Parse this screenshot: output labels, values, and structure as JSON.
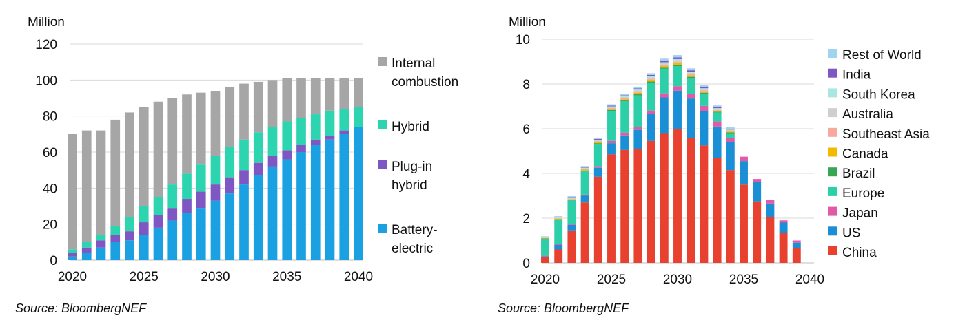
{
  "chart_data": [
    {
      "type": "bar",
      "stacked": true,
      "ylabel": "Million",
      "ylim": [
        0,
        120
      ],
      "yticks": [
        0,
        20,
        40,
        60,
        80,
        100,
        120
      ],
      "x": [
        2020,
        2021,
        2022,
        2023,
        2024,
        2025,
        2026,
        2027,
        2028,
        2029,
        2030,
        2031,
        2032,
        2033,
        2034,
        2035,
        2036,
        2037,
        2038,
        2039,
        2040
      ],
      "xticks": [
        2020,
        2025,
        2030,
        2035,
        2040
      ],
      "grid": true,
      "legend_position": "right",
      "series": [
        {
          "name": "Battery-electric",
          "color": "#1ba1e2",
          "values": [
            2,
            4,
            7,
            10,
            11,
            14,
            18,
            22,
            26,
            29,
            33,
            37,
            42,
            47,
            52,
            56,
            60,
            64,
            67,
            70,
            74
          ]
        },
        {
          "name": "Plug-in hybrid",
          "color": "#7e57c2",
          "values": [
            2,
            3,
            4,
            4,
            5,
            7,
            7,
            7,
            8,
            9,
            9,
            9,
            8,
            7,
            6,
            5,
            4,
            3,
            2,
            2,
            0
          ]
        },
        {
          "name": "Hybrid",
          "color": "#2dd4b0",
          "values": [
            2,
            3,
            3,
            5,
            8,
            9,
            10,
            13,
            14,
            15,
            16,
            17,
            17,
            17,
            16,
            16,
            15,
            14,
            14,
            12,
            11
          ]
        },
        {
          "name": "Internal combustion",
          "color": "#a6a6a6",
          "values": [
            64,
            62,
            58,
            59,
            58,
            55,
            53,
            48,
            44,
            40,
            36,
            33,
            31,
            28,
            26,
            24,
            22,
            20,
            18,
            17,
            16
          ]
        }
      ],
      "legend": [
        {
          "label": [
            "Internal",
            "combustion"
          ],
          "color": "#a6a6a6"
        },
        {
          "label": [
            "Hybrid"
          ],
          "color": "#2dd4b0"
        },
        {
          "label": [
            "Plug-in",
            "hybrid"
          ],
          "color": "#7e57c2"
        },
        {
          "label": [
            "Battery-",
            "electric"
          ],
          "color": "#1ba1e2"
        }
      ],
      "source": "Source: BloombergNEF"
    },
    {
      "type": "bar",
      "stacked": true,
      "ylabel": "Million",
      "ylim": [
        0,
        10
      ],
      "yticks": [
        0,
        2,
        4,
        6,
        8,
        10
      ],
      "x": [
        2020,
        2021,
        2022,
        2023,
        2024,
        2025,
        2026,
        2027,
        2028,
        2029,
        2030,
        2031,
        2032,
        2033,
        2034,
        2035,
        2036,
        2037,
        2038,
        2039
      ],
      "xticks": [
        2020,
        2025,
        2030,
        2035,
        2040
      ],
      "grid": true,
      "legend_position": "right",
      "series": [
        {
          "name": "China",
          "color": "#e8412f",
          "values": [
            0.25,
            0.6,
            1.45,
            2.7,
            3.85,
            4.85,
            5.05,
            5.1,
            5.45,
            5.8,
            6.0,
            5.6,
            5.25,
            4.7,
            4.15,
            3.5,
            2.75,
            2.05,
            1.35,
            0.65
          ]
        },
        {
          "name": "US",
          "color": "#1a8fd6",
          "values": [
            0.05,
            0.2,
            0.25,
            0.3,
            0.4,
            0.5,
            0.65,
            0.85,
            1.2,
            1.6,
            1.7,
            1.75,
            1.55,
            1.4,
            1.25,
            1.05,
            0.85,
            0.6,
            0.45,
            0.25
          ]
        },
        {
          "name": "Japan",
          "color": "#e05aa8",
          "values": [
            0.02,
            0.03,
            0.04,
            0.05,
            0.07,
            0.1,
            0.12,
            0.14,
            0.16,
            0.18,
            0.2,
            0.22,
            0.22,
            0.22,
            0.2,
            0.2,
            0.15,
            0.15,
            0.1,
            0.1
          ]
        },
        {
          "name": "Europe",
          "color": "#2dcfa8",
          "values": [
            0.75,
            1.1,
            1.05,
            1.05,
            1.0,
            1.35,
            1.4,
            1.4,
            1.25,
            1.1,
            0.9,
            0.7,
            0.55,
            0.4,
            0.2,
            0,
            0,
            0,
            0,
            0
          ]
        },
        {
          "name": "Brazil",
          "color": "#3aa655",
          "values": [
            0.02,
            0.02,
            0.02,
            0.03,
            0.03,
            0.04,
            0.04,
            0.05,
            0.05,
            0.05,
            0.05,
            0.05,
            0.04,
            0.04,
            0.03,
            0,
            0,
            0,
            0,
            0
          ]
        },
        {
          "name": "Canada",
          "color": "#f5b800",
          "values": [
            0.02,
            0.03,
            0.03,
            0.04,
            0.05,
            0.05,
            0.06,
            0.07,
            0.08,
            0.08,
            0.08,
            0.07,
            0.06,
            0.05,
            0.04,
            0,
            0,
            0,
            0,
            0
          ]
        },
        {
          "name": "Southeast Asia",
          "color": "#f7a99e",
          "values": [
            0.01,
            0.01,
            0.02,
            0.02,
            0.03,
            0.03,
            0.04,
            0.04,
            0.04,
            0.05,
            0.05,
            0.04,
            0.04,
            0.03,
            0.03,
            0,
            0,
            0,
            0,
            0
          ]
        },
        {
          "name": "Australia",
          "color": "#cfcfcf",
          "values": [
            0.02,
            0.03,
            0.03,
            0.04,
            0.05,
            0.05,
            0.06,
            0.06,
            0.07,
            0.07,
            0.08,
            0.07,
            0.06,
            0.05,
            0.04,
            0,
            0,
            0,
            0,
            0
          ]
        },
        {
          "name": "South Korea",
          "color": "#a8e6e2",
          "values": [
            0.01,
            0.02,
            0.02,
            0.02,
            0.03,
            0.03,
            0.03,
            0.04,
            0.04,
            0.04,
            0.05,
            0.04,
            0.04,
            0.03,
            0.02,
            0,
            0,
            0,
            0,
            0
          ]
        },
        {
          "name": "India",
          "color": "#7e57c2",
          "values": [
            0.01,
            0.01,
            0.02,
            0.02,
            0.03,
            0.03,
            0.04,
            0.05,
            0.06,
            0.07,
            0.08,
            0.07,
            0.06,
            0.05,
            0.04,
            0,
            0,
            0,
            0,
            0
          ]
        },
        {
          "name": "Rest of World",
          "color": "#9fd3f0",
          "values": [
            0.03,
            0.04,
            0.05,
            0.06,
            0.06,
            0.06,
            0.07,
            0.08,
            0.08,
            0.09,
            0.1,
            0.09,
            0.08,
            0.07,
            0.06,
            0,
            0,
            0,
            0,
            0
          ]
        }
      ],
      "legend": [
        {
          "label": [
            "Rest of World"
          ],
          "color": "#9fd3f0"
        },
        {
          "label": [
            "India"
          ],
          "color": "#7e57c2"
        },
        {
          "label": [
            "South Korea"
          ],
          "color": "#a8e6e2"
        },
        {
          "label": [
            "Australia"
          ],
          "color": "#cfcfcf"
        },
        {
          "label": [
            "Southeast Asia"
          ],
          "color": "#f7a99e"
        },
        {
          "label": [
            "Canada"
          ],
          "color": "#f5b800"
        },
        {
          "label": [
            "Brazil"
          ],
          "color": "#3aa655"
        },
        {
          "label": [
            "Europe"
          ],
          "color": "#2dcfa8"
        },
        {
          "label": [
            "Japan"
          ],
          "color": "#e05aa8"
        },
        {
          "label": [
            "US"
          ],
          "color": "#1a8fd6"
        },
        {
          "label": [
            "China"
          ],
          "color": "#e8412f"
        }
      ],
      "source": "Source: BloombergNEF"
    }
  ]
}
